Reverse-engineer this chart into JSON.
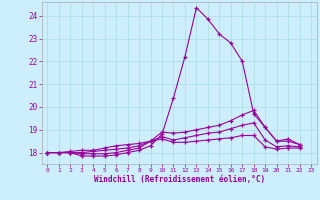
{
  "xlabel": "Windchill (Refroidissement éolien,°C)",
  "bg_color": "#cceeff",
  "grid_color": "#aadddd",
  "line_color": "#990099",
  "spine_color": "#aaaaaa",
  "xlim": [
    -0.5,
    23.5
  ],
  "ylim": [
    17.5,
    24.6
  ],
  "yticks": [
    18,
    19,
    20,
    21,
    22,
    23,
    24
  ],
  "xticks": [
    0,
    1,
    2,
    3,
    4,
    5,
    6,
    7,
    8,
    9,
    10,
    11,
    12,
    13,
    14,
    15,
    16,
    17,
    18,
    19,
    20,
    21,
    22,
    23
  ],
  "series": [
    [
      18.0,
      18.0,
      18.0,
      17.85,
      17.85,
      17.85,
      17.9,
      18.0,
      18.1,
      18.3,
      18.8,
      20.4,
      22.2,
      24.35,
      23.85,
      23.2,
      22.8,
      22.0,
      19.7,
      19.1,
      18.5,
      18.6,
      18.35
    ],
    [
      18.0,
      18.0,
      18.0,
      17.95,
      17.95,
      17.95,
      18.0,
      18.1,
      18.2,
      18.5,
      18.9,
      18.85,
      18.9,
      19.0,
      19.1,
      19.2,
      19.4,
      19.65,
      19.85,
      19.1,
      18.5,
      18.5,
      18.35
    ],
    [
      18.0,
      18.0,
      18.0,
      18.0,
      18.05,
      18.1,
      18.15,
      18.2,
      18.3,
      18.5,
      18.7,
      18.55,
      18.65,
      18.75,
      18.85,
      18.9,
      19.05,
      19.2,
      19.3,
      18.55,
      18.25,
      18.3,
      18.25
    ],
    [
      18.0,
      18.0,
      18.05,
      18.1,
      18.1,
      18.2,
      18.3,
      18.35,
      18.4,
      18.5,
      18.6,
      18.45,
      18.45,
      18.5,
      18.55,
      18.6,
      18.65,
      18.75,
      18.75,
      18.25,
      18.15,
      18.2,
      18.2
    ]
  ]
}
